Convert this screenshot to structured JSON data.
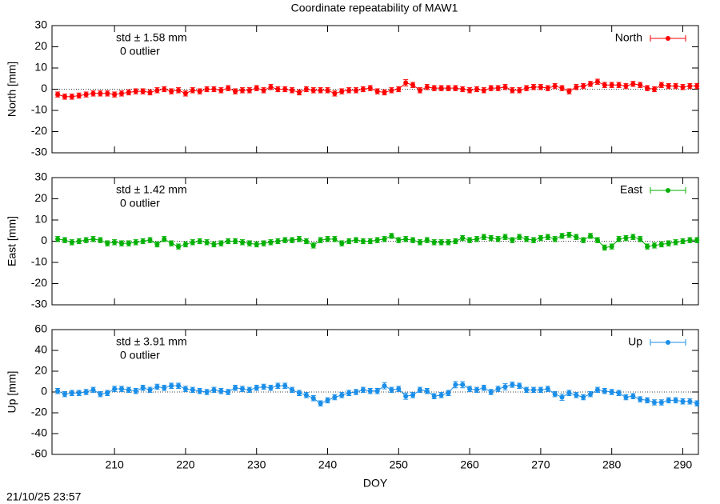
{
  "title": "Coordinate repeatability of MAW1",
  "footer": "21/10/25 23:57",
  "chart_data": [
    {
      "type": "line",
      "ylabel": "North [mm]",
      "annotations": [
        "std ± 1.58 mm",
        "0 outlier"
      ],
      "legend": "upper right",
      "zero_line": true,
      "show_xticklabels": false,
      "xlim": [
        201.2,
        292.2
      ],
      "xticks": [
        210,
        220,
        230,
        240,
        250,
        260,
        270,
        280,
        290
      ],
      "ylim": [
        -30,
        30
      ],
      "yticks": [
        -30,
        -20,
        -10,
        0,
        10,
        20,
        30
      ],
      "x": [
        202,
        203,
        204,
        205,
        206,
        207,
        208,
        209,
        210,
        211,
        212,
        213,
        214,
        215,
        216,
        217,
        218,
        219,
        220,
        221,
        222,
        223,
        224,
        225,
        226,
        227,
        228,
        229,
        230,
        231,
        232,
        233,
        234,
        235,
        236,
        237,
        238,
        239,
        240,
        241,
        242,
        243,
        244,
        245,
        246,
        247,
        248,
        249,
        250,
        251,
        252,
        253,
        254,
        255,
        256,
        257,
        258,
        259,
        260,
        261,
        262,
        263,
        264,
        265,
        266,
        267,
        268,
        269,
        270,
        271,
        272,
        273,
        274,
        275,
        276,
        277,
        278,
        279,
        280,
        281,
        282,
        283,
        284,
        285,
        286,
        287,
        288,
        289,
        290,
        291,
        292
      ],
      "series": [
        {
          "name": "North",
          "color": "#ff0000",
          "values": [
            -2.5,
            -3.5,
            -3.5,
            -3,
            -2.5,
            -2,
            -2,
            -2,
            -2.5,
            -2,
            -1.5,
            -1,
            -1,
            -1.5,
            -0.5,
            0,
            -1,
            -0.5,
            -2,
            -0.5,
            -1,
            0,
            0,
            -0.5,
            0.5,
            -1,
            -0.5,
            -0.5,
            0.5,
            -0.5,
            1,
            0,
            0,
            -0.5,
            -1.5,
            0,
            -0.5,
            -0.5,
            -0.5,
            -2,
            -1,
            -0.5,
            -0.5,
            0,
            0.5,
            -1,
            -1.5,
            -0.5,
            0,
            3,
            2,
            -0.5,
            1,
            0.5,
            0.5,
            0.5,
            0.5,
            0,
            -0.5,
            0,
            -0.5,
            0.5,
            0.5,
            1,
            -0.5,
            -0.5,
            0.5,
            1,
            1,
            0.5,
            1.5,
            0.5,
            -1,
            1,
            1.5,
            2.5,
            3.5,
            2,
            2,
            2,
            1.5,
            2.5,
            2,
            0.5,
            0,
            2,
            1.5,
            1.5,
            1,
            1.5,
            1.5
          ],
          "errors": [
            1.2,
            1.2,
            1.2,
            1.2,
            1.2,
            1.2,
            1.2,
            1.2,
            1.2,
            1.2,
            1.2,
            1.2,
            1.2,
            1.2,
            1.2,
            1.2,
            1.2,
            1.2,
            1.2,
            1.2,
            1.2,
            1.2,
            1.2,
            1.2,
            1.2,
            1.2,
            1.2,
            1.2,
            1.2,
            1.2,
            1.2,
            1.2,
            1.2,
            1.2,
            1.2,
            1.2,
            1.2,
            1.2,
            1.2,
            1.2,
            1.2,
            1.2,
            1.2,
            1.2,
            1.2,
            1.2,
            1.2,
            1.2,
            1.2,
            1.5,
            1.2,
            1.2,
            1.2,
            1.2,
            1.2,
            1.2,
            1.2,
            1.2,
            1.2,
            1.2,
            1.2,
            1.2,
            1.2,
            1.2,
            1.2,
            1.2,
            1.2,
            1.2,
            1.2,
            1.2,
            1.2,
            1.2,
            1.2,
            1.2,
            1.2,
            1.2,
            1.2,
            1.2,
            1.2,
            1.2,
            1.2,
            1.2,
            1.2,
            1.2,
            1.2,
            1.2,
            1.2,
            1.2,
            1.2,
            1.2,
            1.2
          ]
        }
      ]
    },
    {
      "type": "line",
      "ylabel": "East [mm]",
      "annotations": [
        "std ± 1.42 mm",
        "0 outlier"
      ],
      "legend": "upper right",
      "zero_line": true,
      "show_xticklabels": false,
      "xlim": [
        201.2,
        292.2
      ],
      "xticks": [
        210,
        220,
        230,
        240,
        250,
        260,
        270,
        280,
        290
      ],
      "ylim": [
        -30,
        30
      ],
      "yticks": [
        -30,
        -20,
        -10,
        0,
        10,
        20,
        30
      ],
      "x": [
        202,
        203,
        204,
        205,
        206,
        207,
        208,
        209,
        210,
        211,
        212,
        213,
        214,
        215,
        216,
        217,
        218,
        219,
        220,
        221,
        222,
        223,
        224,
        225,
        226,
        227,
        228,
        229,
        230,
        231,
        232,
        233,
        234,
        235,
        236,
        237,
        238,
        239,
        240,
        241,
        242,
        243,
        244,
        245,
        246,
        247,
        248,
        249,
        250,
        251,
        252,
        253,
        254,
        255,
        256,
        257,
        258,
        259,
        260,
        261,
        262,
        263,
        264,
        265,
        266,
        267,
        268,
        269,
        270,
        271,
        272,
        273,
        274,
        275,
        276,
        277,
        278,
        279,
        280,
        281,
        282,
        283,
        284,
        285,
        286,
        287,
        288,
        289,
        290,
        291,
        292
      ],
      "series": [
        {
          "name": "East",
          "color": "#00b000",
          "values": [
            1,
            0.5,
            -0.5,
            0,
            0.5,
            1,
            0.5,
            -1,
            -0.5,
            -1,
            -1,
            -0.5,
            0,
            0.5,
            -1.5,
            1,
            -1,
            -2.5,
            -1.5,
            -0.5,
            0,
            -0.5,
            -1.5,
            -1,
            0,
            0,
            -0.5,
            -1,
            -1.5,
            -1,
            -0.5,
            0,
            0.5,
            0.5,
            1,
            0,
            -2,
            0.5,
            1,
            1,
            -1,
            0,
            0.5,
            0,
            0,
            0.5,
            1,
            2.5,
            0.5,
            1,
            0.5,
            -0.5,
            0.5,
            -0.5,
            -0.5,
            -0.5,
            0,
            1.5,
            0.5,
            1,
            2,
            1.5,
            1,
            2,
            0.5,
            2,
            1,
            0.5,
            1.5,
            2,
            1,
            2.5,
            3,
            2,
            0.5,
            2.5,
            0.5,
            -3,
            -2.5,
            1,
            1.5,
            2,
            1,
            -2.5,
            -2,
            -1.5,
            -1,
            -0.5,
            0,
            0.5,
            0.5
          ],
          "errors": [
            1.2,
            1.2,
            1.2,
            1.2,
            1.2,
            1.2,
            1.2,
            1.2,
            1.2,
            1.2,
            1.2,
            1.2,
            1.2,
            1.2,
            1.2,
            1.2,
            1.2,
            1.2,
            1.2,
            1.2,
            1.2,
            1.2,
            1.2,
            1.2,
            1.2,
            1.2,
            1.2,
            1.2,
            1.2,
            1.2,
            1.2,
            1.2,
            1.2,
            1.2,
            1.2,
            1.2,
            1.2,
            1.2,
            1.2,
            1.2,
            1.2,
            1.2,
            1.2,
            1.2,
            1.2,
            1.2,
            1.2,
            1.2,
            1.2,
            1.2,
            1.2,
            1.2,
            1.2,
            1.2,
            1.2,
            1.2,
            1.2,
            1.2,
            1.2,
            1.2,
            1.2,
            1.2,
            1.2,
            1.2,
            1.2,
            1.2,
            1.2,
            1.2,
            1.2,
            1.2,
            1.2,
            1.2,
            1.2,
            1.2,
            1.2,
            1.2,
            1.2,
            1.2,
            1.2,
            1.2,
            1.2,
            1.2,
            1.2,
            1.2,
            1.2,
            1.2,
            1.2,
            1.2,
            1.2,
            1.2,
            1.2
          ]
        }
      ]
    },
    {
      "type": "line",
      "ylabel": "Up [mm]",
      "xlabel": "DOY",
      "annotations": [
        "std ± 3.91 mm",
        "0 outlier"
      ],
      "legend": "upper right",
      "zero_line": true,
      "show_xticklabels": true,
      "xlim": [
        201.2,
        292.2
      ],
      "xticks": [
        210,
        220,
        230,
        240,
        250,
        260,
        270,
        280,
        290
      ],
      "ylim": [
        -60,
        60
      ],
      "yticks": [
        -60,
        -40,
        -20,
        0,
        20,
        40,
        60
      ],
      "x": [
        202,
        203,
        204,
        205,
        206,
        207,
        208,
        209,
        210,
        211,
        212,
        213,
        214,
        215,
        216,
        217,
        218,
        219,
        220,
        221,
        222,
        223,
        224,
        225,
        226,
        227,
        228,
        229,
        230,
        231,
        232,
        233,
        234,
        235,
        236,
        237,
        238,
        239,
        240,
        241,
        242,
        243,
        244,
        245,
        246,
        247,
        248,
        249,
        250,
        251,
        252,
        253,
        254,
        255,
        256,
        257,
        258,
        259,
        260,
        261,
        262,
        263,
        264,
        265,
        266,
        267,
        268,
        269,
        270,
        271,
        272,
        273,
        274,
        275,
        276,
        277,
        278,
        279,
        280,
        281,
        282,
        283,
        284,
        285,
        286,
        287,
        288,
        289,
        290,
        291,
        292
      ],
      "series": [
        {
          "name": "Up",
          "color": "#1a8ee8",
          "values": [
            1,
            -2,
            -1,
            -1,
            0,
            2,
            -2,
            -1,
            3,
            3,
            2,
            1,
            4,
            2,
            5,
            4,
            6,
            6,
            3,
            2,
            1,
            0,
            2,
            1,
            0,
            4,
            3,
            2,
            4,
            5,
            4,
            6,
            6,
            2,
            -1,
            -3,
            -6,
            -11,
            -8,
            -5,
            -3,
            -1,
            0,
            2,
            1,
            1,
            6,
            2,
            3,
            -4,
            -3,
            2,
            1,
            -4,
            -3,
            -1,
            7,
            7,
            3,
            2,
            4,
            0,
            3,
            5,
            7,
            6,
            2,
            2,
            2,
            3,
            -2,
            -5,
            -1,
            -3,
            -5,
            -2,
            2,
            1,
            0,
            -1,
            -5,
            -4,
            -7,
            -8,
            -10,
            -10,
            -8,
            -8,
            -9,
            -9,
            -11
          ],
          "errors": [
            2.5,
            2.5,
            2.5,
            2.5,
            2.5,
            2.5,
            2.5,
            2.5,
            2.5,
            2.5,
            2.5,
            2.5,
            2.5,
            2.5,
            2.5,
            2.5,
            2.5,
            2.5,
            2.5,
            2.5,
            2.5,
            2.5,
            2.5,
            2.5,
            2.5,
            2.5,
            2.5,
            2.5,
            2.5,
            2.5,
            2.5,
            2.5,
            2.5,
            2.5,
            2.5,
            2.5,
            2.5,
            2.5,
            2.5,
            2.5,
            2.5,
            2.5,
            2.5,
            2.5,
            2.5,
            2.5,
            3,
            2.5,
            2.5,
            3,
            2.5,
            2.5,
            2.5,
            2.5,
            2.5,
            2.5,
            3,
            3,
            2.5,
            2.5,
            2.5,
            2.5,
            2.5,
            3,
            2.5,
            2.5,
            2.5,
            2.5,
            2.5,
            2.5,
            2.5,
            3,
            2.5,
            2.5,
            2.5,
            2.5,
            2.5,
            2.5,
            2.5,
            2.5,
            2.5,
            2.5,
            2.5,
            2.5,
            2.5,
            2.5,
            2.5,
            2.5,
            2.5,
            2.5,
            2.5
          ]
        }
      ]
    }
  ]
}
